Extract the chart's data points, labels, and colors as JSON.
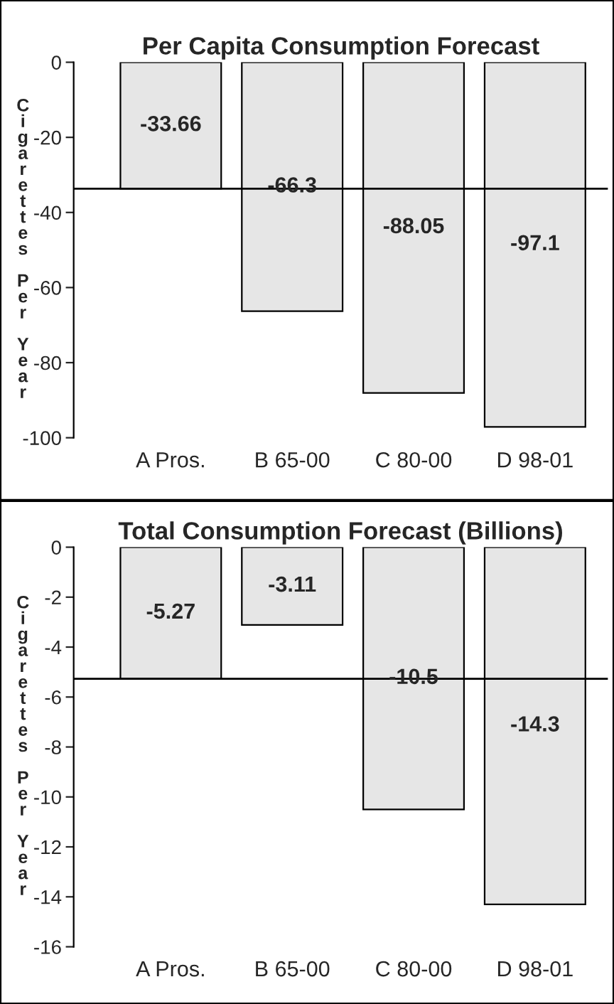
{
  "chart_data": [
    {
      "type": "bar",
      "title": "Per Capita Consumption Forecast",
      "ylabel": "Cigarettes Per Year",
      "categories": [
        "A Pros.",
        "B 65-00",
        "C 80-00",
        "D 98-01"
      ],
      "values": [
        -33.66,
        -66.3,
        -88.05,
        -97.1
      ],
      "color": "#e6e6e6",
      "ylim": [
        -100,
        0
      ],
      "yticks": [
        0,
        -20,
        -40,
        -60,
        -80,
        -100
      ],
      "data_labels": true,
      "grid": false,
      "ref_lines": [
        {
          "axis": "y",
          "value": -33.66,
          "color": "#000000"
        }
      ]
    },
    {
      "type": "bar",
      "title": "Total Consumption Forecast (Billions)",
      "ylabel": "Cigarettes Per Year",
      "categories": [
        "A Pros.",
        "B 65-00",
        "C 80-00",
        "D 98-01"
      ],
      "values": [
        -5.27,
        -3.11,
        -10.5,
        -14.3
      ],
      "color": "#e6e6e6",
      "ylim": [
        -16,
        0
      ],
      "yticks": [
        0,
        -2,
        -4,
        -6,
        -8,
        -10,
        -12,
        -14,
        -16
      ],
      "data_labels": true,
      "grid": false,
      "ref_lines": [
        {
          "axis": "y",
          "value": -5.27,
          "color": "#000000"
        }
      ]
    }
  ]
}
